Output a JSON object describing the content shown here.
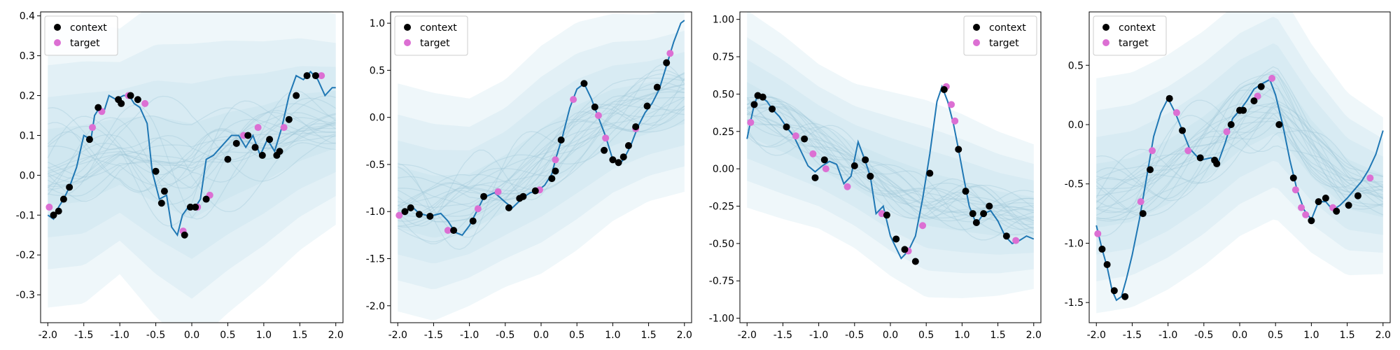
{
  "chart_data": [
    {
      "type": "line",
      "xlim": [
        -2.1,
        2.1
      ],
      "ylim": [
        -0.37,
        0.41
      ],
      "xticks": [
        "-2.0",
        "-1.5",
        "-1.0",
        "-0.5",
        "0.0",
        "0.5",
        "1.0",
        "1.5",
        "2.0"
      ],
      "yticks": [
        "-0.3",
        "-0.2",
        "-0.1",
        "0.0",
        "0.1",
        "0.2",
        "0.3",
        "0.4"
      ],
      "ytick_values": [
        -0.3,
        -0.2,
        -0.1,
        0.0,
        0.1,
        0.2,
        0.3,
        0.4
      ],
      "legend": {
        "placement": "top-left",
        "entries": [
          "context",
          "target"
        ]
      },
      "grid": false,
      "colors": {
        "line": "#1f77b4",
        "band": "#b7dce8",
        "samples": "#9dc6d8",
        "context": "#000000",
        "target": "#dc6fd3"
      },
      "band": {
        "x": [
          -2.0,
          -1.5,
          -1.0,
          -0.5,
          0.0,
          0.5,
          1.0,
          1.5,
          2.0
        ],
        "mean": [
          0.02,
          0.03,
          0.06,
          0.04,
          0.01,
          0.05,
          0.08,
          0.12,
          0.14
        ],
        "std": [
          0.16,
          0.16,
          0.14,
          0.18,
          0.2,
          0.18,
          0.16,
          0.14,
          0.12
        ]
      },
      "sample_seed": 11,
      "line": {
        "x": [
          -2.0,
          -1.92,
          -1.85,
          -1.78,
          -1.7,
          -1.6,
          -1.5,
          -1.4,
          -1.35,
          -1.28,
          -1.22,
          -1.15,
          -1.05,
          -0.95,
          -0.87,
          -0.8,
          -0.72,
          -0.62,
          -0.55,
          -0.45,
          -0.35,
          -0.28,
          -0.2,
          -0.13,
          -0.05,
          0.05,
          0.12,
          0.2,
          0.3,
          0.45,
          0.55,
          0.65,
          0.75,
          0.85,
          0.95,
          1.05,
          1.15,
          1.25,
          1.35,
          1.45,
          1.55,
          1.65,
          1.75,
          1.85,
          1.95,
          2.0
        ],
        "y": [
          -0.1,
          -0.11,
          -0.08,
          -0.06,
          -0.03,
          0.02,
          0.1,
          0.09,
          0.15,
          0.17,
          0.16,
          0.2,
          0.19,
          0.2,
          0.2,
          0.18,
          0.17,
          0.13,
          0.01,
          -0.06,
          -0.05,
          -0.13,
          -0.15,
          -0.1,
          -0.08,
          -0.08,
          -0.06,
          0.04,
          0.05,
          0.08,
          0.1,
          0.1,
          0.07,
          0.1,
          0.05,
          0.09,
          0.06,
          0.12,
          0.2,
          0.25,
          0.24,
          0.26,
          0.24,
          0.2,
          0.22,
          0.22
        ]
      },
      "context": {
        "x": [
          -1.92,
          -1.85,
          -1.78,
          -1.7,
          -1.42,
          -1.3,
          -1.02,
          -0.98,
          -0.85,
          -0.75,
          -0.5,
          -0.42,
          -0.38,
          -0.1,
          -0.02,
          0.05,
          0.2,
          0.5,
          0.62,
          0.78,
          0.88,
          0.98,
          1.08,
          1.18,
          1.22,
          1.35,
          1.45,
          1.6,
          1.72
        ],
        "y": [
          -0.1,
          -0.09,
          -0.06,
          -0.03,
          0.09,
          0.17,
          0.19,
          0.18,
          0.2,
          0.19,
          0.01,
          -0.07,
          -0.04,
          -0.15,
          -0.08,
          -0.08,
          -0.06,
          0.04,
          0.08,
          0.1,
          0.07,
          0.05,
          0.09,
          0.05,
          0.06,
          0.14,
          0.2,
          0.25,
          0.25
        ]
      },
      "target": {
        "x": [
          -1.98,
          -1.38,
          -1.25,
          -0.88,
          -0.65,
          -0.12,
          0.08,
          0.25,
          0.72,
          0.92,
          1.28,
          1.8
        ],
        "y": [
          -0.08,
          0.12,
          0.16,
          0.2,
          0.18,
          -0.14,
          -0.08,
          -0.05,
          0.1,
          0.12,
          0.12,
          0.25
        ]
      }
    },
    {
      "type": "line",
      "xlim": [
        -2.1,
        2.1
      ],
      "ylim": [
        -2.18,
        1.12
      ],
      "xticks": [
        "-2.0",
        "-1.5",
        "-1.0",
        "-0.5",
        "0.0",
        "0.5",
        "1.0",
        "1.5",
        "2.0"
      ],
      "yticks": [
        "-2.0",
        "-1.5",
        "-1.0",
        "-0.5",
        "0.0",
        "0.5",
        "1.0"
      ],
      "ytick_values": [
        -2.0,
        -1.5,
        -1.0,
        -0.5,
        0.0,
        0.5,
        1.0
      ],
      "legend": {
        "placement": "top-left",
        "entries": [
          "context",
          "target"
        ]
      },
      "grid": false,
      "colors": {
        "line": "#1f77b4",
        "band": "#b7dce8",
        "samples": "#9dc6d8",
        "context": "#000000",
        "target": "#dc6fd3"
      },
      "band": {
        "x": [
          -2.0,
          -1.5,
          -1.0,
          -0.5,
          0.0,
          0.5,
          1.0,
          1.5,
          2.0
        ],
        "mean": [
          -0.85,
          -0.95,
          -0.9,
          -0.7,
          -0.45,
          -0.2,
          0.0,
          0.1,
          0.2
        ],
        "std": [
          0.55,
          0.55,
          0.5,
          0.5,
          0.55,
          0.55,
          0.5,
          0.45,
          0.45
        ]
      },
      "sample_seed": 23,
      "line": {
        "x": [
          -2.0,
          -1.9,
          -1.8,
          -1.7,
          -1.55,
          -1.4,
          -1.3,
          -1.2,
          -1.1,
          -1.0,
          -0.9,
          -0.8,
          -0.65,
          -0.5,
          -0.4,
          -0.25,
          -0.15,
          -0.05,
          0.05,
          0.15,
          0.2,
          0.3,
          0.4,
          0.5,
          0.6,
          0.7,
          0.8,
          0.9,
          1.0,
          1.08,
          1.15,
          1.25,
          1.35,
          1.45,
          1.55,
          1.65,
          1.75,
          1.85,
          1.95,
          2.0
        ],
        "y": [
          -1.05,
          -1.0,
          -0.95,
          -1.02,
          -1.05,
          -1.02,
          -1.1,
          -1.22,
          -1.25,
          -1.15,
          -1.0,
          -0.85,
          -0.8,
          -0.9,
          -0.96,
          -0.85,
          -0.8,
          -0.78,
          -0.72,
          -0.6,
          -0.45,
          -0.2,
          0.1,
          0.3,
          0.36,
          0.2,
          0.0,
          -0.2,
          -0.45,
          -0.5,
          -0.45,
          -0.3,
          -0.1,
          0.05,
          0.15,
          0.3,
          0.55,
          0.8,
          1.0,
          1.03
        ]
      },
      "context": {
        "x": [
          -1.9,
          -1.82,
          -1.7,
          -1.55,
          -1.22,
          -0.95,
          -0.8,
          -0.45,
          -0.3,
          -0.25,
          -0.08,
          0.15,
          0.2,
          0.28,
          0.6,
          0.75,
          0.88,
          1.0,
          1.08,
          1.15,
          1.22,
          1.32,
          1.48,
          1.62,
          1.75
        ],
        "y": [
          -1.0,
          -0.96,
          -1.03,
          -1.05,
          -1.2,
          -1.1,
          -0.84,
          -0.96,
          -0.86,
          -0.84,
          -0.78,
          -0.65,
          -0.57,
          -0.24,
          0.36,
          0.11,
          -0.35,
          -0.45,
          -0.48,
          -0.42,
          -0.3,
          -0.1,
          0.12,
          0.32,
          0.58
        ]
      },
      "target": {
        "x": [
          -1.98,
          -1.3,
          -0.88,
          -0.6,
          -0.02,
          0.2,
          0.45,
          0.8,
          0.9,
          1.32,
          1.8
        ],
        "y": [
          -1.04,
          -1.2,
          -0.97,
          -0.79,
          -0.77,
          -0.45,
          0.19,
          0.02,
          -0.22,
          -0.12,
          0.68
        ]
      }
    },
    {
      "type": "line",
      "xlim": [
        -2.1,
        2.1
      ],
      "ylim": [
        -1.03,
        1.05
      ],
      "xticks": [
        "-2.0",
        "-1.5",
        "-1.0",
        "-0.5",
        "0.0",
        "0.5",
        "1.0",
        "1.5",
        "2.0"
      ],
      "yticks": [
        "-1.00",
        "-0.75",
        "-0.50",
        "-0.25",
        "0.00",
        "0.25",
        "0.50",
        "0.75",
        "1.00"
      ],
      "ytick_values": [
        -1.0,
        -0.75,
        -0.5,
        -0.25,
        0.0,
        0.25,
        0.5,
        0.75,
        1.0
      ],
      "legend": {
        "placement": "top-right",
        "entries": [
          "context",
          "target"
        ]
      },
      "grid": false,
      "colors": {
        "line": "#1f77b4",
        "band": "#b7dce8",
        "samples": "#9dc6d8",
        "context": "#000000",
        "target": "#dc6fd3"
      },
      "band": {
        "x": [
          -2.0,
          -1.5,
          -1.0,
          -0.5,
          0.0,
          0.5,
          1.0,
          1.5,
          2.0
        ],
        "mean": [
          0.4,
          0.28,
          0.15,
          0.02,
          -0.1,
          -0.2,
          -0.25,
          -0.3,
          -0.32
        ],
        "std": [
          0.3,
          0.28,
          0.25,
          0.25,
          0.28,
          0.3,
          0.28,
          0.25,
          0.22
        ]
      },
      "sample_seed": 37,
      "line": {
        "x": [
          -2.0,
          -1.95,
          -1.9,
          -1.85,
          -1.8,
          -1.72,
          -1.65,
          -1.55,
          -1.45,
          -1.35,
          -1.25,
          -1.15,
          -1.05,
          -0.95,
          -0.85,
          -0.75,
          -0.65,
          -0.55,
          -0.45,
          -0.35,
          -0.28,
          -0.2,
          -0.1,
          0.0,
          0.05,
          0.15,
          0.25,
          0.35,
          0.45,
          0.55,
          0.65,
          0.72,
          0.8,
          0.88,
          0.95,
          1.02,
          1.1,
          1.2,
          1.3,
          1.4,
          1.5,
          1.6,
          1.7,
          1.8,
          1.9,
          2.0
        ],
        "y": [
          0.2,
          0.32,
          0.43,
          0.49,
          0.48,
          0.45,
          0.4,
          0.35,
          0.28,
          0.22,
          0.12,
          0.02,
          -0.02,
          0.02,
          0.05,
          0.03,
          -0.1,
          -0.05,
          0.18,
          0.05,
          -0.05,
          -0.3,
          -0.25,
          -0.45,
          -0.5,
          -0.6,
          -0.55,
          -0.45,
          -0.2,
          0.1,
          0.45,
          0.55,
          0.45,
          0.3,
          0.13,
          -0.05,
          -0.25,
          -0.37,
          -0.3,
          -0.28,
          -0.35,
          -0.45,
          -0.5,
          -0.48,
          -0.45,
          -0.47
        ]
      },
      "context": {
        "x": [
          -1.9,
          -1.85,
          -1.78,
          -1.65,
          -1.45,
          -1.2,
          -1.05,
          -0.92,
          -0.5,
          -0.35,
          -0.28,
          -0.05,
          0.08,
          0.2,
          0.35,
          0.55,
          0.75,
          0.95,
          1.05,
          1.15,
          1.2,
          1.3,
          1.38,
          1.62
        ],
        "y": [
          0.43,
          0.49,
          0.48,
          0.4,
          0.28,
          0.2,
          -0.06,
          0.06,
          0.02,
          0.06,
          -0.05,
          -0.31,
          -0.47,
          -0.54,
          -0.62,
          -0.03,
          0.53,
          0.13,
          -0.15,
          -0.3,
          -0.36,
          -0.3,
          -0.25,
          -0.45
        ]
      },
      "target": {
        "x": [
          -1.95,
          -1.32,
          -1.08,
          -0.9,
          -0.6,
          -0.12,
          0.25,
          0.45,
          0.78,
          0.85,
          0.9,
          1.75
        ],
        "y": [
          0.31,
          0.22,
          0.1,
          0.0,
          -0.12,
          -0.3,
          -0.55,
          -0.38,
          0.55,
          0.43,
          0.32,
          -0.48
        ]
      }
    },
    {
      "type": "line",
      "xlim": [
        -2.1,
        2.1
      ],
      "ylim": [
        -1.67,
        0.95
      ],
      "xticks": [
        "-2.0",
        "-1.5",
        "-1.0",
        "-0.5",
        "0.0",
        "0.5",
        "1.0",
        "1.5",
        "2.0"
      ],
      "yticks": [
        "-1.5",
        "-1.0",
        "-0.5",
        "0.0",
        "0.5"
      ],
      "ytick_values": [
        -1.5,
        -1.0,
        -0.5,
        0.0,
        0.5
      ],
      "legend": {
        "placement": "top-left",
        "entries": [
          "context",
          "target"
        ]
      },
      "grid": false,
      "colors": {
        "line": "#1f77b4",
        "band": "#b7dce8",
        "samples": "#9dc6d8",
        "context": "#000000",
        "target": "#dc6fd3"
      },
      "band": {
        "x": [
          -2.0,
          -1.5,
          -1.0,
          -0.5,
          0.0,
          0.5,
          1.0,
          1.5,
          2.0
        ],
        "mean": [
          -0.6,
          -0.55,
          -0.4,
          -0.2,
          0.05,
          0.2,
          -0.2,
          -0.5,
          -0.6
        ],
        "std": [
          0.45,
          0.45,
          0.45,
          0.45,
          0.45,
          0.45,
          0.4,
          0.35,
          0.3
        ]
      },
      "sample_seed": 53,
      "line": {
        "x": [
          -2.0,
          -1.92,
          -1.85,
          -1.78,
          -1.72,
          -1.65,
          -1.58,
          -1.5,
          -1.4,
          -1.3,
          -1.2,
          -1.1,
          -1.0,
          -0.9,
          -0.8,
          -0.7,
          -0.55,
          -0.4,
          -0.3,
          -0.2,
          -0.1,
          0.0,
          0.1,
          0.2,
          0.3,
          0.42,
          0.5,
          0.6,
          0.7,
          0.8,
          0.9,
          1.0,
          1.1,
          1.2,
          1.3,
          1.4,
          1.5,
          1.6,
          1.7,
          1.8,
          1.9,
          2.0
        ],
        "y": [
          -0.85,
          -1.05,
          -1.2,
          -1.4,
          -1.48,
          -1.45,
          -1.3,
          -1.1,
          -0.8,
          -0.45,
          -0.1,
          0.1,
          0.22,
          0.1,
          -0.05,
          -0.2,
          -0.3,
          -0.28,
          -0.32,
          -0.15,
          0.05,
          0.12,
          0.2,
          0.3,
          0.34,
          0.38,
          0.25,
          0.0,
          -0.3,
          -0.55,
          -0.72,
          -0.8,
          -0.65,
          -0.65,
          -0.72,
          -0.68,
          -0.62,
          -0.55,
          -0.48,
          -0.38,
          -0.25,
          -0.05
        ]
      },
      "context": {
        "x": [
          -1.92,
          -1.85,
          -1.75,
          -1.6,
          -1.35,
          -1.25,
          -0.98,
          -0.8,
          -0.55,
          -0.35,
          -0.32,
          -0.12,
          0.0,
          0.05,
          0.2,
          0.3,
          0.55,
          0.75,
          1.0,
          1.1,
          1.2,
          1.35,
          1.52,
          1.65
        ],
        "y": [
          -1.05,
          -1.18,
          -1.4,
          -1.45,
          -0.75,
          -0.38,
          0.22,
          -0.05,
          -0.28,
          -0.3,
          -0.33,
          0.0,
          0.12,
          0.12,
          0.2,
          0.32,
          0.0,
          -0.45,
          -0.81,
          -0.65,
          -0.62,
          -0.73,
          -0.68,
          -0.6
        ]
      },
      "target": {
        "x": [
          -1.98,
          -1.38,
          -1.22,
          -0.88,
          -0.72,
          -0.18,
          0.25,
          0.45,
          0.78,
          0.86,
          0.92,
          1.3,
          1.82
        ],
        "y": [
          -0.92,
          -0.65,
          -0.22,
          0.1,
          -0.22,
          -0.06,
          0.24,
          0.39,
          -0.55,
          -0.7,
          -0.76,
          -0.7,
          -0.45
        ]
      }
    }
  ]
}
